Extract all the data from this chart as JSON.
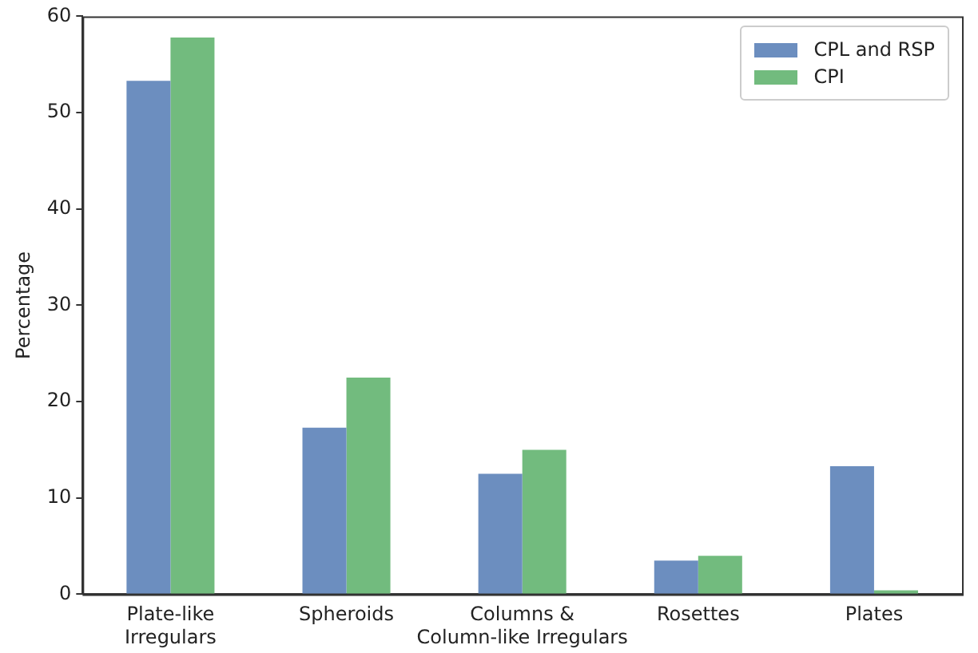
{
  "chart_data": {
    "type": "bar",
    "ylabel": "Percentage",
    "categories": [
      "Plate-like\nIrregulars",
      "Spheroids",
      "Columns &\nColumn-like Irregulars",
      "Rosettes",
      "Plates"
    ],
    "series": [
      {
        "name": "CPL and RSP",
        "color": "#6c8ebf",
        "values": [
          53.3,
          17.3,
          12.5,
          3.5,
          13.3
        ]
      },
      {
        "name": "CPI",
        "color": "#72bb7e",
        "values": [
          57.8,
          22.5,
          15.0,
          4.0,
          0.4
        ]
      }
    ],
    "ylim": [
      0,
      60
    ],
    "yticks": [
      0,
      10,
      20,
      30,
      40,
      50,
      60
    ],
    "grid": false,
    "legend": "top right"
  }
}
